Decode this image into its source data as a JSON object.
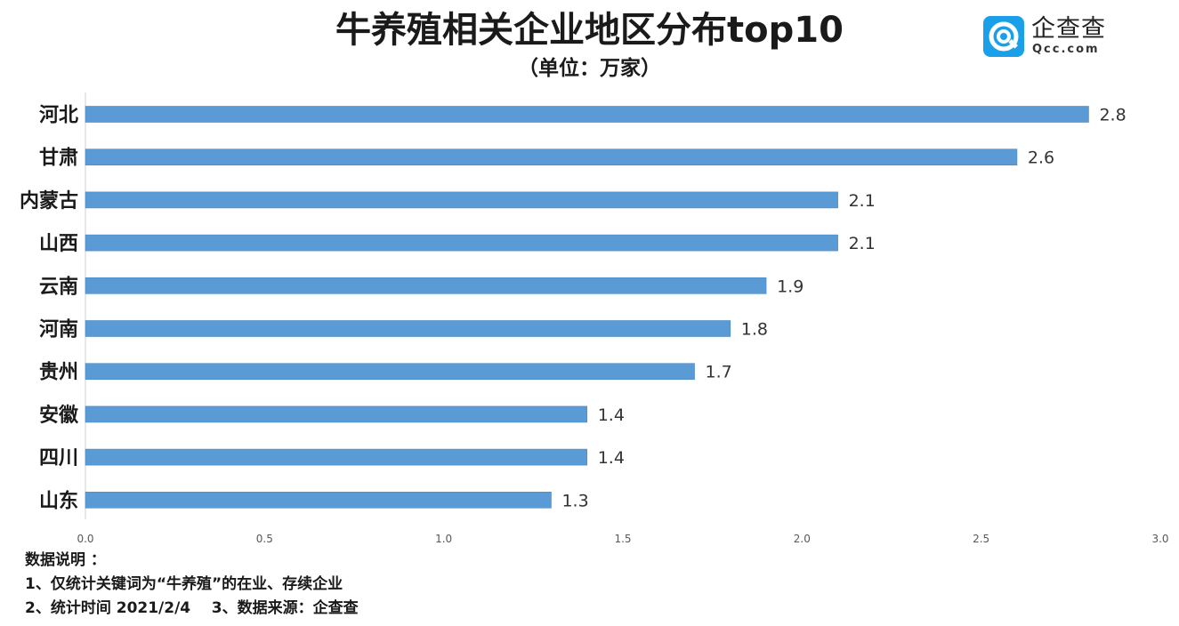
{
  "chart_data": {
    "type": "bar",
    "orientation": "horizontal",
    "title": "牛养殖相关企业地区分布top10",
    "subtitle": "（单位：万家）",
    "categories": [
      "河北",
      "甘肃",
      "内蒙古",
      "山西",
      "云南",
      "河南",
      "贵州",
      "安徽",
      "四川",
      "山东"
    ],
    "values": [
      2.8,
      2.6,
      2.1,
      2.1,
      1.9,
      1.8,
      1.7,
      1.4,
      1.4,
      1.3
    ],
    "value_labels": [
      "2.8",
      "2.6",
      "2.1",
      "2.1",
      "1.9",
      "1.8",
      "1.7",
      "1.4",
      "1.4",
      "1.3"
    ],
    "xlim": [
      0,
      3.0
    ],
    "xticks": [
      "0.0",
      "0.5",
      "1.0",
      "1.5",
      "2.0",
      "2.5",
      "3.0"
    ],
    "xtick_values": [
      0,
      0.5,
      1.0,
      1.5,
      2.0,
      2.5,
      3.0
    ],
    "grid": false,
    "legend": "none",
    "bar_color": "#5b9bd5"
  },
  "logo": {
    "name": "企查查",
    "domain": "Qcc.com",
    "color": "#1aa0e8"
  },
  "notes": {
    "title": "数据说明 ：",
    "line1": "1、仅统计关键词为“牛养殖”的在业、存续企业",
    "line2": "2、统计时间 2021/2/4    3、数据来源：企查查"
  }
}
